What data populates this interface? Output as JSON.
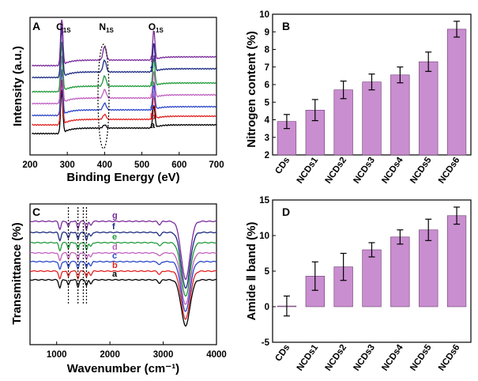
{
  "chart_data": [
    {
      "panel": "A",
      "type": "line",
      "xlabel": "Binding Energy (eV)",
      "ylabel": "Intensity (a.u.)",
      "xlim": [
        200,
        700
      ],
      "xticks": [
        200,
        300,
        400,
        500,
        600,
        700
      ],
      "peak_labels": [
        {
          "main": "C",
          "sub": "1S",
          "x": 285
        },
        {
          "main": "N",
          "sub": "1S",
          "x": 400
        },
        {
          "main": "O",
          "sub": "1S",
          "x": 532
        }
      ],
      "series": [
        {
          "name": "a",
          "color": "#000000",
          "offset": 0
        },
        {
          "name": "b",
          "color": "#e02020",
          "offset": 1
        },
        {
          "name": "c",
          "color": "#2a46c8",
          "offset": 2
        },
        {
          "name": "d",
          "color": "#c060c0",
          "offset": 3
        },
        {
          "name": "e",
          "color": "#1f9a3a",
          "offset": 4
        },
        {
          "name": "f",
          "color": "#1c2a80",
          "offset": 5
        },
        {
          "name": "g",
          "color": "#7a2a9a",
          "offset": 6
        }
      ]
    },
    {
      "panel": "B",
      "type": "bar",
      "ylabel": "Nitrogen content (%)",
      "ylim": [
        2,
        10
      ],
      "yticks": [
        2,
        3,
        4,
        5,
        6,
        7,
        8,
        9,
        10
      ],
      "categories": [
        "CDs",
        "NCDs1",
        "NCDs2",
        "NCDs3",
        "NCDs4",
        "NCDs5",
        "NCDs6"
      ],
      "values": [
        3.9,
        4.55,
        5.7,
        6.15,
        6.55,
        7.3,
        9.15
      ],
      "errors": [
        0.4,
        0.6,
        0.5,
        0.45,
        0.45,
        0.55,
        0.45
      ],
      "bar_color": "#c98ecf"
    },
    {
      "panel": "C",
      "type": "line",
      "xlabel": "Wavenumber (cm⁻¹)",
      "ylabel": "Transmittance (%)",
      "xlim": [
        500,
        4000
      ],
      "xticks": [
        1000,
        2000,
        3000,
        4000
      ],
      "marked_bands": [
        1220,
        1400,
        1500,
        1560
      ],
      "series": [
        {
          "name": "a",
          "color": "#000000",
          "offset": 0
        },
        {
          "name": "b",
          "color": "#e02020",
          "offset": 1
        },
        {
          "name": "c",
          "color": "#2a46c8",
          "offset": 2
        },
        {
          "name": "d",
          "color": "#c060c0",
          "offset": 3
        },
        {
          "name": "e",
          "color": "#1f9a3a",
          "offset": 4
        },
        {
          "name": "f",
          "color": "#1c2a80",
          "offset": 5
        },
        {
          "name": "g",
          "color": "#7a2a9a",
          "offset": 6
        }
      ]
    },
    {
      "panel": "D",
      "type": "bar",
      "ylabel": "Amide Ⅱ band (%)",
      "ylim": [
        -5,
        15
      ],
      "yticks": [
        -5,
        0,
        5,
        10,
        15
      ],
      "categories": [
        "CDs",
        "NCDs1",
        "NCDs2",
        "NCDs3",
        "NCDs4",
        "NCDs5",
        "NCDs6"
      ],
      "values": [
        0.1,
        4.3,
        5.6,
        8.0,
        9.8,
        10.8,
        12.8
      ],
      "errors": [
        1.4,
        2.0,
        1.9,
        1.0,
        1.0,
        1.5,
        1.2
      ],
      "bar_color": "#c98ecf"
    }
  ]
}
